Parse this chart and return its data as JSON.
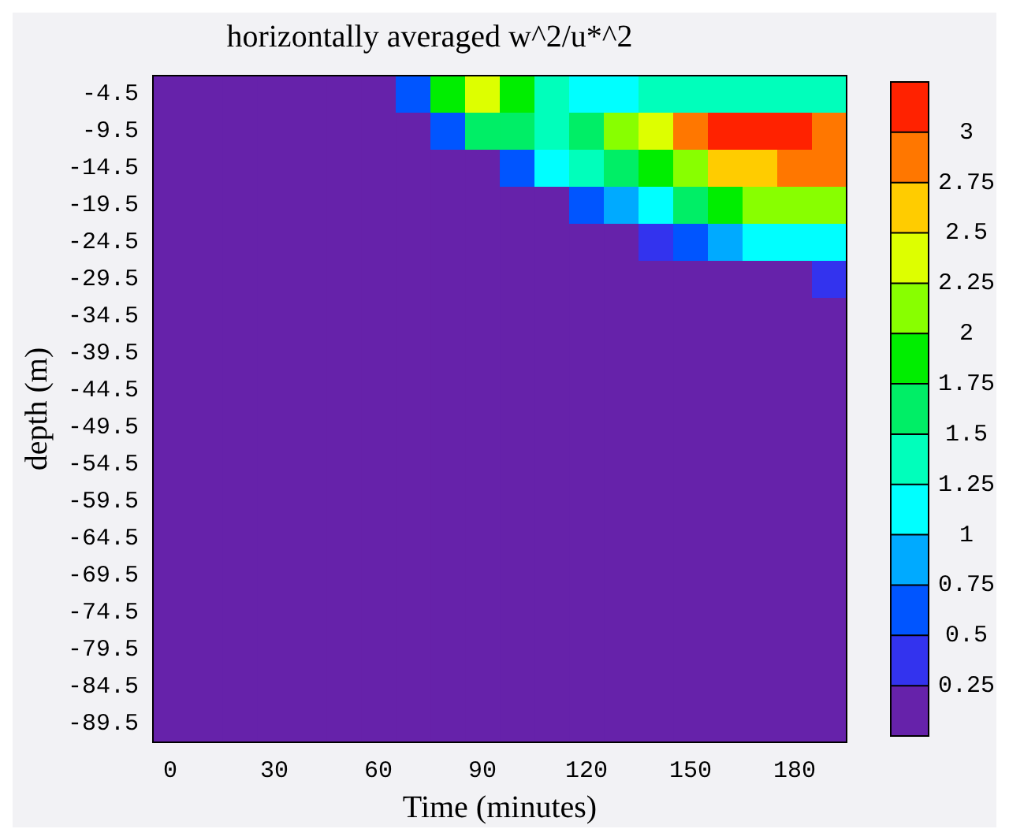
{
  "chart_data": {
    "type": "heatmap",
    "title": "horizontally averaged w^2/u*^2",
    "xlabel": "Time (minutes)",
    "ylabel": "depth (m)",
    "categories": [
      "0",
      null,
      null,
      "30",
      null,
      null,
      "60",
      null,
      null,
      "90",
      null,
      null,
      "120",
      null,
      null,
      "150",
      null,
      null,
      "180",
      null
    ],
    "y_categories": [
      "-4.5",
      "-9.5",
      "-14.5",
      "-19.5",
      "-24.5",
      "-29.5",
      "-34.5",
      "-39.5",
      "-44.5",
      "-49.5",
      "-54.5",
      "-59.5",
      "-64.5",
      "-69.5",
      "-74.5",
      "-79.5",
      "-84.5",
      "-89.5"
    ],
    "cells": [
      [
        0.1,
        0.1,
        0.1,
        0.1,
        0.1,
        0.1,
        0.1,
        0.6,
        1.8,
        2.4,
        1.9,
        1.3,
        1.2,
        1.2,
        1.3,
        1.4,
        1.4,
        1.4,
        1.4,
        1.4
      ],
      [
        0.1,
        0.1,
        0.1,
        0.1,
        0.1,
        0.1,
        0.1,
        0.1,
        0.6,
        1.6,
        1.7,
        1.4,
        1.6,
        2.0,
        2.4,
        2.9,
        3.1,
        3.15,
        3.05,
        2.9
      ],
      [
        0.1,
        0.1,
        0.1,
        0.1,
        0.1,
        0.1,
        0.1,
        0.1,
        0.1,
        0.2,
        0.7,
        1.0,
        1.3,
        1.6,
        1.9,
        2.2,
        2.5,
        2.7,
        2.8,
        2.8
      ],
      [
        0.1,
        0.1,
        0.1,
        0.1,
        0.1,
        0.1,
        0.1,
        0.1,
        0.1,
        0.1,
        0.1,
        0.2,
        0.6,
        0.9,
        1.2,
        1.5,
        1.8,
        2.0,
        2.1,
        2.1
      ],
      [
        0.1,
        0.1,
        0.1,
        0.1,
        0.1,
        0.1,
        0.1,
        0.1,
        0.1,
        0.1,
        0.1,
        0.1,
        0.1,
        0.1,
        0.3,
        0.6,
        0.9,
        1.1,
        1.2,
        1.2
      ],
      [
        0.1,
        0.1,
        0.1,
        0.1,
        0.1,
        0.1,
        0.1,
        0.1,
        0.1,
        0.1,
        0.1,
        0.1,
        0.1,
        0.1,
        0.1,
        0.1,
        0.1,
        0.1,
        0.2,
        0.35
      ],
      [
        0.1,
        0.1,
        0.1,
        0.1,
        0.1,
        0.1,
        0.1,
        0.1,
        0.1,
        0.1,
        0.1,
        0.1,
        0.1,
        0.1,
        0.1,
        0.1,
        0.1,
        0.1,
        0.1,
        0.1
      ],
      [
        0.1,
        0.1,
        0.1,
        0.1,
        0.1,
        0.1,
        0.1,
        0.1,
        0.1,
        0.1,
        0.1,
        0.1,
        0.1,
        0.1,
        0.1,
        0.1,
        0.1,
        0.1,
        0.1,
        0.1
      ],
      [
        0.1,
        0.1,
        0.1,
        0.1,
        0.1,
        0.1,
        0.1,
        0.1,
        0.1,
        0.1,
        0.1,
        0.1,
        0.1,
        0.1,
        0.1,
        0.1,
        0.1,
        0.1,
        0.1,
        0.1
      ],
      [
        0.1,
        0.1,
        0.1,
        0.1,
        0.1,
        0.1,
        0.1,
        0.1,
        0.1,
        0.1,
        0.1,
        0.1,
        0.1,
        0.1,
        0.1,
        0.1,
        0.1,
        0.1,
        0.1,
        0.1
      ],
      [
        0.1,
        0.1,
        0.1,
        0.1,
        0.1,
        0.1,
        0.1,
        0.1,
        0.1,
        0.1,
        0.1,
        0.1,
        0.1,
        0.1,
        0.1,
        0.1,
        0.1,
        0.1,
        0.1,
        0.1
      ],
      [
        0.1,
        0.1,
        0.1,
        0.1,
        0.1,
        0.1,
        0.1,
        0.1,
        0.1,
        0.1,
        0.1,
        0.1,
        0.1,
        0.1,
        0.1,
        0.1,
        0.1,
        0.1,
        0.1,
        0.1
      ],
      [
        0.1,
        0.1,
        0.1,
        0.1,
        0.1,
        0.1,
        0.1,
        0.1,
        0.1,
        0.1,
        0.1,
        0.1,
        0.1,
        0.1,
        0.1,
        0.1,
        0.1,
        0.1,
        0.1,
        0.1
      ],
      [
        0.1,
        0.1,
        0.1,
        0.1,
        0.1,
        0.1,
        0.1,
        0.1,
        0.1,
        0.1,
        0.1,
        0.1,
        0.1,
        0.1,
        0.1,
        0.1,
        0.1,
        0.1,
        0.1,
        0.1
      ],
      [
        0.1,
        0.1,
        0.1,
        0.1,
        0.1,
        0.1,
        0.1,
        0.1,
        0.1,
        0.1,
        0.1,
        0.1,
        0.1,
        0.1,
        0.1,
        0.1,
        0.1,
        0.1,
        0.1,
        0.1
      ],
      [
        0.1,
        0.1,
        0.1,
        0.1,
        0.1,
        0.1,
        0.1,
        0.1,
        0.1,
        0.1,
        0.1,
        0.1,
        0.1,
        0.1,
        0.1,
        0.1,
        0.1,
        0.1,
        0.1,
        0.1
      ],
      [
        0.1,
        0.1,
        0.1,
        0.1,
        0.1,
        0.1,
        0.1,
        0.1,
        0.1,
        0.1,
        0.1,
        0.1,
        0.1,
        0.1,
        0.1,
        0.1,
        0.1,
        0.1,
        0.1,
        0.1
      ],
      [
        0.1,
        0.1,
        0.1,
        0.1,
        0.1,
        0.1,
        0.1,
        0.1,
        0.1,
        0.1,
        0.1,
        0.1,
        0.1,
        0.1,
        0.1,
        0.1,
        0.1,
        0.1,
        0.1,
        0.1
      ]
    ],
    "clim": [
      0,
      3.25
    ],
    "cticks": [
      0.25,
      0.5,
      0.75,
      1,
      1.25,
      1.5,
      1.75,
      2,
      2.25,
      2.5,
      2.75,
      3
    ]
  }
}
